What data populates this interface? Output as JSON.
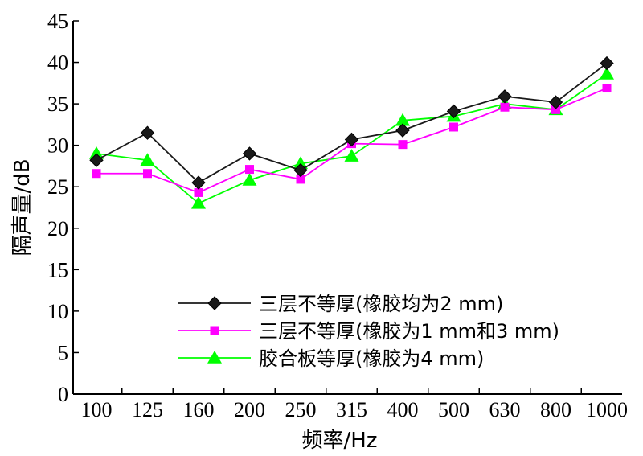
{
  "chart_data": {
    "type": "line",
    "title": "",
    "xlabel": "频率/Hz",
    "ylabel": "隔声量/dB",
    "categories": [
      "100",
      "125",
      "160",
      "200",
      "250",
      "315",
      "400",
      "500",
      "630",
      "800",
      "1000"
    ],
    "ylim": [
      0,
      45
    ],
    "yticks": [
      0,
      5,
      10,
      15,
      20,
      25,
      30,
      35,
      40,
      45
    ],
    "grid": false,
    "legend_position": "bottom-right",
    "series": [
      {
        "name": "三层不等厚(橡胶均为2 mm)",
        "color": "#1a1a1a",
        "marker": "diamond",
        "values": [
          28.2,
          31.5,
          25.5,
          29.0,
          27.0,
          30.7,
          31.8,
          34.1,
          35.9,
          35.2,
          39.9
        ]
      },
      {
        "name": "三层不等厚(橡胶为1 mm和3 mm)",
        "color": "#ff00ff",
        "marker": "square",
        "values": [
          26.6,
          26.6,
          24.3,
          27.1,
          25.9,
          30.2,
          30.1,
          32.2,
          34.6,
          34.3,
          36.9
        ]
      },
      {
        "name": "胶合板等厚(橡胶为4 mm)",
        "color": "#00ff00",
        "marker": "triangle",
        "values": [
          29.0,
          28.2,
          23.0,
          25.8,
          27.8,
          28.7,
          33.0,
          33.5,
          35.0,
          34.3,
          38.6
        ]
      }
    ]
  }
}
